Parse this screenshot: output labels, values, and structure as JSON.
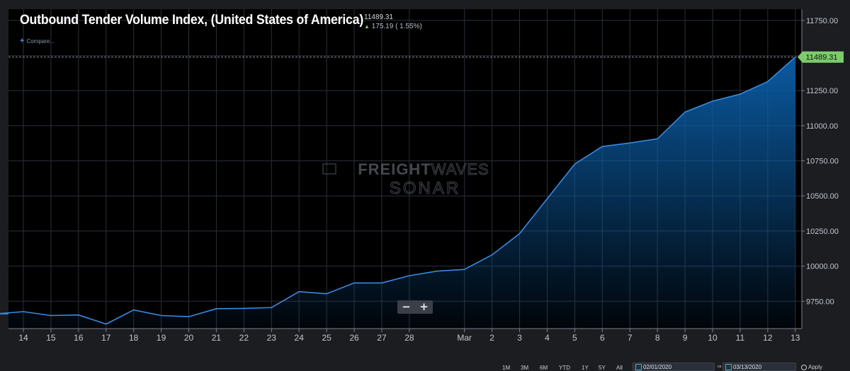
{
  "header": {
    "title": "Outbound Tender Volume Index, (United States of America)",
    "last_price": "11489.31",
    "change_arrow": "▲",
    "change": "175.19 ( 1.55%)",
    "compare_icon": "plus-icon",
    "compare_label": "Compare..."
  },
  "watermark": {
    "line1_bold": "FREIGHT",
    "line1_light": "WAVES",
    "line2": "SONAR"
  },
  "zoom": {
    "minus": "−",
    "plus": "+"
  },
  "last_value_tag": "11489.31",
  "range_buttons": [
    "1M",
    "3M",
    "6M",
    "YTD",
    "1Y",
    "5Y",
    "All"
  ],
  "date_range": {
    "start": "02/01/2020",
    "end": "03/13/2020"
  },
  "apply_label": "Apply",
  "colors": {
    "background": "#000000",
    "line": "#3a8be0",
    "area_top": "#0b5ea8",
    "last_tag": "#7ecb6e",
    "up": "#7ec47a"
  },
  "chart_data": {
    "type": "area",
    "title": "Outbound Tender Volume Index, (United States of America)",
    "series": [
      {
        "x": [
          "2020-02-13",
          "2020-02-14",
          "2020-02-15",
          "2020-02-16",
          "2020-02-17",
          "2020-02-18",
          "2020-02-19",
          "2020-02-20",
          "2020-02-21",
          "2020-02-22",
          "2020-02-23",
          "2020-02-24",
          "2020-02-25",
          "2020-02-26",
          "2020-02-27",
          "2020-02-28",
          "2020-02-29",
          "2020-03-01",
          "2020-03-02",
          "2020-03-03",
          "2020-03-04",
          "2020-03-05",
          "2020-03-06",
          "2020-03-07",
          "2020-03-08",
          "2020-03-09",
          "2020-03-10",
          "2020-03-11",
          "2020-03-12",
          "2020-03-13"
        ],
        "values": [
          9660,
          9676,
          9648,
          9652,
          9587,
          9688,
          9648,
          9640,
          9697,
          9699,
          9705,
          9818,
          9803,
          9880,
          9880,
          9932,
          9964,
          9977,
          10080,
          10232,
          10480,
          10727,
          10852,
          10877,
          10907,
          11097,
          11175,
          11225,
          11314,
          11489.31
        ]
      }
    ],
    "x_tick_labels": [
      "14",
      "15",
      "16",
      "17",
      "18",
      "19",
      "20",
      "21",
      "22",
      "23",
      "24",
      "25",
      "26",
      "27",
      "28",
      "Mar",
      "2",
      "3",
      "4",
      "5",
      "6",
      "7",
      "8",
      "9",
      "10",
      "11",
      "12",
      "13"
    ],
    "y_tick_labels": [
      "9750.00",
      "10000.00",
      "10250.00",
      "10500.00",
      "10750.00",
      "11000.00",
      "11250.00",
      "11750.00"
    ],
    "y_ticks": [
      9750,
      10000,
      10250,
      10500,
      10750,
      11000,
      11250,
      11750
    ],
    "ylim": [
      9555,
      11830
    ],
    "grid": true,
    "last_value_label": "11489.31"
  }
}
